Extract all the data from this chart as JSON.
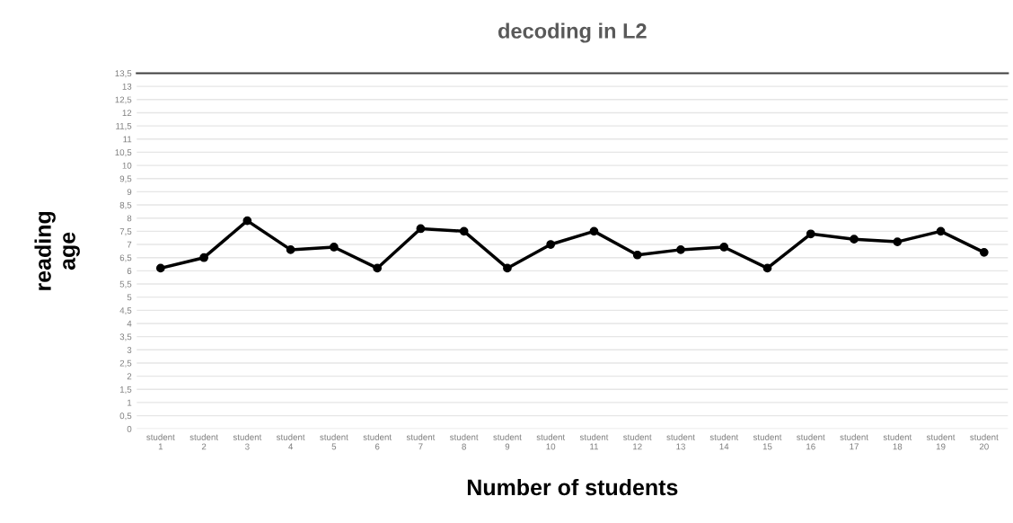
{
  "chart_data": {
    "type": "line",
    "title": "decoding in L2",
    "xlabel": "Number of students",
    "ylabel": "reading\nage",
    "categories": [
      "student 1",
      "student 2",
      "student 3",
      "student 4",
      "student 5",
      "student 6",
      "student 7",
      "student 8",
      "student 9",
      "student 10",
      "student 11",
      "student 12",
      "student 13",
      "student 14",
      "student 15",
      "student 16",
      "student 17",
      "student 18",
      "student 19",
      "student 20"
    ],
    "series": [
      {
        "color": "#000000",
        "values": [
          6.1,
          6.5,
          7.9,
          6.8,
          6.9,
          6.1,
          7.6,
          7.5,
          6.1,
          7.0,
          7.5,
          6.6,
          6.8,
          6.9,
          6.1,
          7.4,
          7.2,
          7.1,
          7.5,
          6.7
        ]
      }
    ],
    "ylim": [
      0,
      13.5
    ],
    "yticks": [
      0,
      {
        "value": 0.5,
        "label": "0,5"
      },
      1,
      {
        "value": 1.5,
        "label": "1,5"
      },
      2,
      {
        "value": 2.5,
        "label": "2,5"
      },
      3,
      {
        "value": 3.5,
        "label": "3,5"
      },
      4,
      {
        "value": 4.5,
        "label": "4,5"
      },
      5,
      {
        "value": 5.5,
        "label": "5,5"
      },
      6,
      {
        "value": 6.5,
        "label": "6,5"
      },
      7,
      {
        "value": 7.5,
        "label": "7,5"
      },
      8,
      {
        "value": 8.5,
        "label": "8,5"
      },
      9,
      {
        "value": 9.5,
        "label": "9,5"
      },
      10,
      {
        "value": 10.5,
        "label": "10,5"
      },
      11,
      {
        "value": 11.5,
        "label": "11,5"
      },
      12,
      {
        "value": 12.5,
        "label": "12,5"
      },
      13,
      {
        "value": 13.5,
        "label": "13,5"
      }
    ],
    "grid": "y",
    "marker": "circle",
    "line_style": "solid"
  }
}
